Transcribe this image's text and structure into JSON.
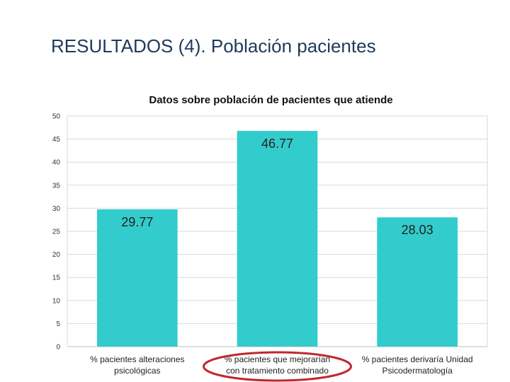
{
  "slide": {
    "title": "RESULTADOS (4). Población pacientes"
  },
  "chart_data": {
    "type": "bar",
    "title": "Datos sobre población de pacientes que atiende",
    "categories": [
      [
        "% pacientes alteraciones",
        "psicológicas"
      ],
      [
        "% pacientes que mejorarían",
        "con tratamiento combinado"
      ],
      [
        "% pacientes derivaría Unidad",
        "Psicodermatología"
      ]
    ],
    "values": [
      29.77,
      46.77,
      28.03
    ],
    "data_labels": [
      "29.77",
      "46.77",
      "28.03"
    ],
    "ylim": [
      0,
      50
    ],
    "yticks": [
      0,
      5,
      10,
      15,
      20,
      25,
      30,
      35,
      40,
      45,
      50
    ],
    "grid": true,
    "bar_color": "#33cccc",
    "highlight": {
      "category_index": 1,
      "color": "#c0272d",
      "shape": "ellipse"
    }
  }
}
